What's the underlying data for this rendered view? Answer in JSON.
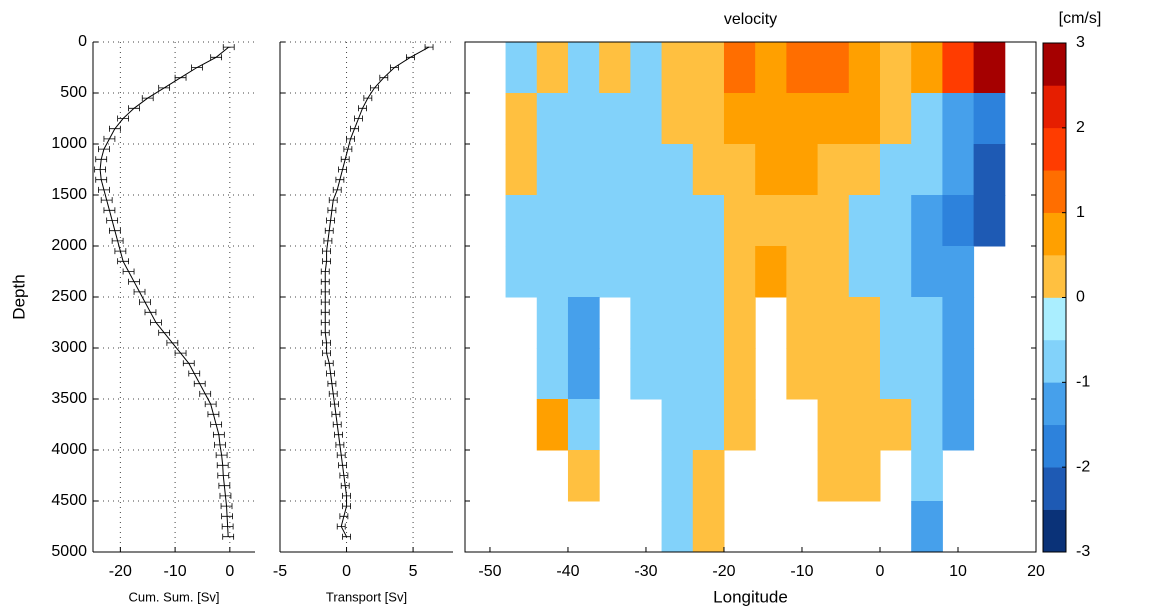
{
  "chart_data": [
    {
      "type": "line",
      "xlabel": "Cum. Sum. [Sv]",
      "ylabel": "Depth",
      "color": "#000000",
      "error": 1,
      "depth": [
        50,
        150,
        250,
        350,
        450,
        550,
        650,
        750,
        850,
        950,
        1050,
        1150,
        1250,
        1350,
        1450,
        1550,
        1650,
        1750,
        1850,
        1950,
        2050,
        2150,
        2250,
        2350,
        2450,
        2550,
        2650,
        2750,
        2850,
        2950,
        3050,
        3150,
        3250,
        3350,
        3450,
        3550,
        3650,
        3750,
        3850,
        3950,
        4050,
        4150,
        4250,
        4350,
        4450,
        4550,
        4650,
        4750,
        4850
      ],
      "values": [
        -0.2,
        -2.5,
        -6,
        -9,
        -12,
        -15,
        -17.5,
        -19.5,
        -21,
        -22,
        -23,
        -23.5,
        -23.7,
        -23.5,
        -23,
        -22.5,
        -22,
        -21.5,
        -21,
        -20.5,
        -20,
        -19.5,
        -18.5,
        -17.5,
        -16.5,
        -15.5,
        -14.5,
        -13.5,
        -12,
        -10.5,
        -9,
        -7.5,
        -6.5,
        -5.5,
        -4.5,
        -3.5,
        -3,
        -2.5,
        -2,
        -1.8,
        -1.5,
        -1.3,
        -1.2,
        -1,
        -0.8,
        -0.6,
        -0.5,
        -0.4,
        -0.3
      ],
      "xlim": [
        -25,
        4.6
      ],
      "xticks": [
        -20,
        -10,
        0
      ],
      "ylim": [
        0,
        5000
      ],
      "y_inverted": true,
      "yticks": [
        0,
        500,
        1000,
        1500,
        2000,
        2500,
        3000,
        3500,
        4000,
        4500,
        5000
      ],
      "ytick_labels": true,
      "grid": true
    },
    {
      "type": "line",
      "xlabel": "Transport [Sv]",
      "color": "#000000",
      "error": 0.3,
      "depth": [
        50,
        150,
        250,
        350,
        450,
        550,
        650,
        750,
        850,
        950,
        1050,
        1150,
        1250,
        1350,
        1450,
        1550,
        1650,
        1750,
        1850,
        1950,
        2050,
        2150,
        2250,
        2350,
        2450,
        2550,
        2650,
        2750,
        2850,
        2950,
        3050,
        3150,
        3250,
        3350,
        3450,
        3550,
        3650,
        3750,
        3850,
        3950,
        4050,
        4150,
        4250,
        4350,
        4450,
        4550,
        4650,
        4750,
        4850
      ],
      "values": [
        6.2,
        4.8,
        3.6,
        2.8,
        2.1,
        1.6,
        1.2,
        0.9,
        0.6,
        0.3,
        0.1,
        -0.1,
        -0.3,
        -0.5,
        -0.7,
        -1,
        -1.1,
        -1.2,
        -1.3,
        -1.4,
        -1.5,
        -1.5,
        -1.6,
        -1.6,
        -1.6,
        -1.6,
        -1.6,
        -1.6,
        -1.6,
        -1.5,
        -1.5,
        -1.3,
        -1.2,
        -1.1,
        -1,
        -0.9,
        -0.8,
        -0.7,
        -0.6,
        -0.5,
        -0.4,
        -0.3,
        -0.2,
        -0.1,
        0,
        0,
        -0.2,
        -0.4,
        0
      ],
      "xlim": [
        -5,
        8
      ],
      "xticks": [
        -5,
        0,
        5
      ],
      "ylim": [
        0,
        5000
      ],
      "y_inverted": true,
      "yticks": [
        0,
        500,
        1000,
        1500,
        2000,
        2500,
        3000,
        3500,
        4000,
        4500,
        5000
      ],
      "ytick_labels": false,
      "grid": true
    },
    {
      "type": "contour",
      "title": "velocity",
      "xlabel": "Longitude",
      "x": [
        -46,
        -42,
        -38,
        -34,
        -30,
        -26,
        -22,
        -18,
        -14,
        -10,
        -6,
        -2,
        2,
        6,
        10,
        14
      ],
      "y": [
        250,
        750,
        1250,
        1750,
        2250,
        2750,
        3250,
        3750,
        4250,
        4750
      ],
      "z": [
        [
          -0.7,
          0.3,
          -0.7,
          0.3,
          -0.7,
          0.3,
          0.3,
          1.3,
          0.7,
          1.3,
          1.3,
          0.7,
          0.3,
          0.7,
          1.7,
          2.7
        ],
        [
          0.3,
          -0.7,
          -0.7,
          -0.7,
          -0.7,
          0.3,
          0.3,
          0.7,
          0.7,
          0.7,
          0.7,
          0.7,
          0.3,
          -0.7,
          -1.3,
          -1.7
        ],
        [
          0.3,
          -0.7,
          -0.7,
          -0.7,
          -0.7,
          -0.7,
          0.3,
          0.3,
          0.7,
          0.7,
          0.3,
          0.3,
          -0.7,
          -0.7,
          -1.3,
          -2.3
        ],
        [
          -0.7,
          -0.7,
          -0.7,
          -0.7,
          -0.7,
          -0.7,
          -0.7,
          0.3,
          0.3,
          0.3,
          0.3,
          -0.7,
          -0.7,
          -1.3,
          -1.7,
          -2.3
        ],
        [
          -0.7,
          -0.7,
          -0.7,
          -0.7,
          -0.7,
          -0.7,
          -0.7,
          0.3,
          0.7,
          0.3,
          0.3,
          -0.7,
          -0.7,
          -1.3,
          -1.3,
          null
        ],
        [
          null,
          -0.7,
          -1.3,
          null,
          -0.7,
          -0.7,
          -0.7,
          0.3,
          null,
          0.3,
          0.3,
          0.3,
          -0.7,
          -0.7,
          -1.3,
          null
        ],
        [
          null,
          -0.7,
          -1.3,
          null,
          -0.7,
          -0.7,
          -0.7,
          0.3,
          null,
          0.3,
          0.3,
          0.3,
          -0.7,
          -0.7,
          -1.3,
          null
        ],
        [
          null,
          0.7,
          -0.7,
          null,
          null,
          -0.7,
          -0.7,
          0.3,
          null,
          null,
          0.3,
          0.3,
          0.3,
          -0.7,
          -1.3,
          null
        ],
        [
          null,
          null,
          0.3,
          null,
          null,
          -0.7,
          0.3,
          null,
          null,
          null,
          0.3,
          0.3,
          null,
          -0.7,
          null,
          null
        ],
        [
          null,
          null,
          null,
          null,
          null,
          -0.7,
          0.3,
          null,
          null,
          null,
          null,
          null,
          null,
          -1.3,
          null,
          null
        ]
      ],
      "xlim": [
        -53.2,
        20
      ],
      "xticks": [
        -50,
        -40,
        -30,
        -20,
        -10,
        0,
        10,
        20
      ],
      "ylim": [
        0,
        5000
      ],
      "y_inverted": true,
      "yticks": [
        0,
        500,
        1000,
        1500,
        2000,
        2500,
        3000,
        3500,
        4000,
        4500,
        5000
      ],
      "ytick_labels": false,
      "grid": false,
      "levels": [
        -3,
        -2.5,
        -2,
        -1.5,
        -1,
        -0.5,
        0,
        0.5,
        1,
        1.5,
        2,
        2.5,
        3
      ],
      "colors": [
        "#0a3278",
        "#1e5ab4",
        "#2d82dc",
        "#46a0eb",
        "#82d2fa",
        "#aaeeff",
        "#ffc040",
        "#ffa000",
        "#ff6e00",
        "#ff3c00",
        "#e61e00",
        "#a50000"
      ],
      "colorbar_ticks": [
        -3,
        -2,
        -1,
        0,
        1,
        2,
        3
      ],
      "colorbar_label": "[cm/s]"
    }
  ]
}
